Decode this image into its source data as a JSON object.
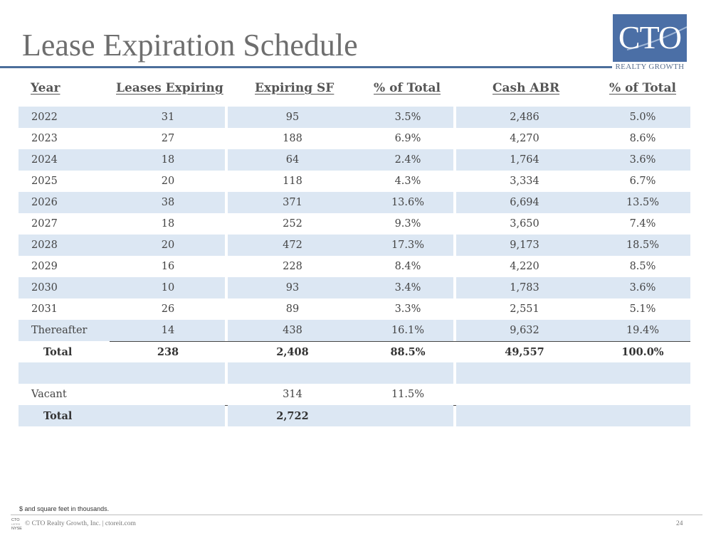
{
  "title": "Lease Expiration Schedule",
  "logo": {
    "text": "CTO",
    "subtext": "REALTY GROWTH"
  },
  "headers": [
    "Year",
    "Leases Expiring",
    "Expiring SF",
    "% of Total",
    "Cash ABR",
    "% of Total"
  ],
  "rows": [
    [
      "2022",
      "31",
      "95",
      "3.5%",
      "2,486",
      "5.0%"
    ],
    [
      "2023",
      "27",
      "188",
      "6.9%",
      "4,270",
      "8.6%"
    ],
    [
      "2024",
      "18",
      "64",
      "2.4%",
      "1,764",
      "3.6%"
    ],
    [
      "2025",
      "20",
      "118",
      "4.3%",
      "3,334",
      "6.7%"
    ],
    [
      "2026",
      "38",
      "371",
      "13.6%",
      "6,694",
      "13.5%"
    ],
    [
      "2027",
      "18",
      "252",
      "9.3%",
      "3,650",
      "7.4%"
    ],
    [
      "2028",
      "20",
      "472",
      "17.3%",
      "9,173",
      "18.5%"
    ],
    [
      "2029",
      "16",
      "228",
      "8.4%",
      "4,220",
      "8.5%"
    ],
    [
      "2030",
      "10",
      "93",
      "3.4%",
      "1,783",
      "3.6%"
    ],
    [
      "2031",
      "26",
      "89",
      "3.3%",
      "2,551",
      "5.1%"
    ],
    [
      "Thereafter",
      "14",
      "438",
      "16.1%",
      "9,632",
      "19.4%"
    ]
  ],
  "total": [
    "Total",
    "238",
    "2,408",
    "88.5%",
    "49,557",
    "100.0%"
  ],
  "vacant": [
    "Vacant",
    "314",
    "11.5%"
  ],
  "grand_total": [
    "Total",
    "2,722"
  ],
  "footnote": "$ and square feet in thousands.",
  "footer": {
    "logo_top": "CTO",
    "logo_mid": "LISTED",
    "logo_bottom": "NYSE",
    "copyright": "© CTO Realty Growth, Inc. | ctoreit.com",
    "page_number": "24"
  }
}
